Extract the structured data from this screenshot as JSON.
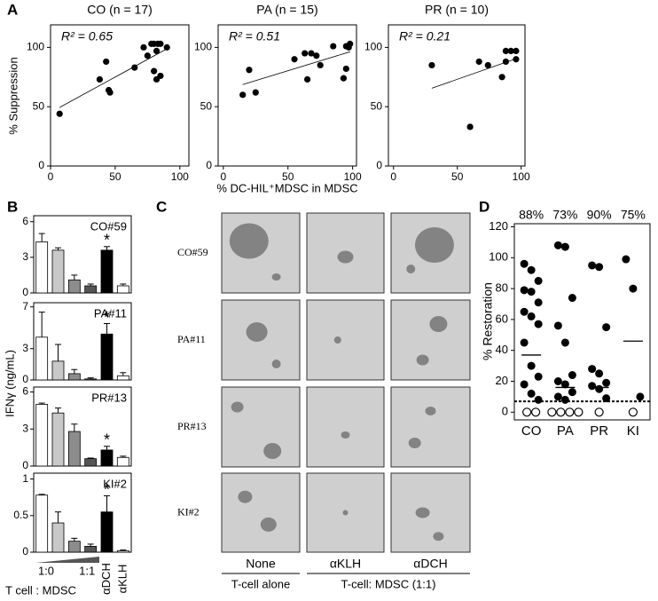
{
  "figure_labels": [
    "A",
    "B",
    "C",
    "D"
  ],
  "panel_a": {
    "ylabel": "% Suppression",
    "xlabel": "% DC-HIL⁺MDSC in MDSC"
  },
  "panel_b": {
    "ylabel": "IFNγ (ng/mL)",
    "xlabel": "T cell : MDSC"
  },
  "panel_c": {
    "rows": [
      "CO#59",
      "PA#11",
      "PR#13",
      "KI#2"
    ],
    "columns": [
      "None",
      "αKLH",
      "αDCH"
    ],
    "groups": [
      "T-cell alone",
      "T-cell: MDSC (1:1)"
    ]
  },
  "chart_data": [
    {
      "type": "scatter",
      "title": "CO (n = 17)",
      "annotation": "R² = 0.65",
      "color": "#000000",
      "trend_line": true,
      "x": [
        7,
        38,
        43,
        45,
        46,
        65,
        72,
        75,
        78,
        80,
        82,
        83,
        85,
        80,
        82,
        85,
        90
      ],
      "y": [
        44,
        73,
        88,
        64,
        62,
        83,
        100,
        93,
        103,
        103,
        97,
        103,
        103,
        80,
        73,
        76,
        100
      ],
      "xlim": [
        0,
        107
      ],
      "ylim": [
        0,
        119
      ],
      "xticks": [
        0,
        50,
        100
      ],
      "yticks": [
        0,
        50,
        100
      ]
    },
    {
      "type": "scatter",
      "title": "PA (n = 15)",
      "annotation": "R² = 0.51",
      "color": "#000000",
      "trend_line": true,
      "x": [
        15,
        20,
        25,
        55,
        63,
        65,
        68,
        72,
        75,
        85,
        95,
        95,
        97,
        98,
        93
      ],
      "y": [
        60,
        81,
        62,
        90,
        95,
        73,
        95,
        93,
        85,
        101,
        101,
        82,
        100,
        103,
        74
      ],
      "xlim": [
        -4,
        103
      ],
      "ylim": [
        0,
        119
      ],
      "xticks": [
        0,
        50,
        100
      ],
      "yticks": [
        0,
        50,
        100
      ]
    },
    {
      "type": "scatter",
      "title": "PR (n = 10)",
      "annotation": "R² = 0.21",
      "color": "#000000",
      "trend_line": true,
      "x": [
        30,
        60,
        67,
        74,
        85,
        88,
        88,
        92,
        96,
        96
      ],
      "y": [
        85,
        33,
        88,
        85,
        75,
        97,
        88,
        97,
        97,
        90
      ],
      "xlim": [
        -4,
        103
      ],
      "ylim": [
        0,
        119
      ],
      "xticks": [
        0,
        50,
        100
      ],
      "yticks": [
        0,
        50,
        100
      ]
    },
    {
      "type": "bar",
      "title": "CO#59",
      "colors": [
        "#ffffff",
        "#c8c8c8",
        "#8c8c8c",
        "#555555",
        "#000000",
        "#ffffff"
      ],
      "values": [
        4.3,
        3.6,
        1.1,
        0.6,
        3.6,
        0.6
      ],
      "errors": [
        0.7,
        0.2,
        0.4,
        0.15,
        0.3,
        0.15
      ],
      "ylim": [
        0,
        6.5
      ],
      "yticks": [
        0,
        3,
        6
      ],
      "annotations": [
        {
          "text": "*",
          "x": 4
        }
      ]
    },
    {
      "type": "bar",
      "title": "PA#11",
      "colors": [
        "#ffffff",
        "#c8c8c8",
        "#8c8c8c",
        "#555555",
        "#000000",
        "#ffffff"
      ],
      "values": [
        4.1,
        1.8,
        0.6,
        0.1,
        4.4,
        0.4
      ],
      "errors": [
        2.4,
        1.6,
        0.4,
        0.1,
        1.0,
        0.3
      ],
      "ylim": [
        0,
        7.4
      ],
      "yticks": [
        0,
        3,
        7
      ],
      "annotations": [
        {
          "text": "*",
          "x": 4
        }
      ]
    },
    {
      "type": "bar",
      "title": "PR#13",
      "colors": [
        "#ffffff",
        "#c8c8c8",
        "#8c8c8c",
        "#555555",
        "#000000",
        "#ffffff"
      ],
      "values": [
        5.0,
        4.3,
        2.8,
        0.6,
        1.3,
        0.7
      ],
      "errors": [
        0.1,
        0.4,
        0.6,
        0.05,
        0.3,
        0.1
      ],
      "ylim": [
        0,
        6.4
      ],
      "yticks": [
        0,
        3,
        6
      ],
      "annotations": [
        {
          "text": "*",
          "x": 4
        }
      ]
    },
    {
      "type": "bar",
      "title": "KI#2",
      "colors": [
        "#ffffff",
        "#c8c8c8",
        "#8c8c8c",
        "#555555",
        "#000000",
        "#ffffff"
      ],
      "categories": [
        "1:0",
        null,
        null,
        "1:1",
        "αDCH",
        "αKLH"
      ],
      "values": [
        0.78,
        0.4,
        0.15,
        0.08,
        0.55,
        0.02
      ],
      "errors": [
        0.01,
        0.15,
        0.04,
        0.03,
        0.22,
        0.01
      ],
      "ylim": [
        0,
        1.08
      ],
      "yticks": [
        0,
        0.5,
        1
      ],
      "annotations": [
        {
          "text": "*",
          "x": 4
        }
      ]
    },
    {
      "type": "dot",
      "ylabel": "% Restoration",
      "categories": [
        "CO",
        "PA",
        "PR",
        "KI"
      ],
      "top_labels": [
        {
          "value": 88,
          "label": "88%"
        },
        {
          "value": 73,
          "label": "73%"
        },
        {
          "value": 90,
          "label": "90%"
        },
        {
          "value": 75,
          "label": "75%"
        }
      ],
      "filled": [
        [
          96,
          92,
          85,
          79,
          78,
          71,
          65,
          62,
          57,
          45,
          30,
          23,
          18,
          12,
          8
        ],
        [
          108,
          107,
          74,
          56,
          45,
          24,
          20,
          18,
          13,
          10,
          8
        ],
        [
          95,
          94,
          55,
          28,
          25,
          19,
          17,
          15,
          9
        ],
        [
          99,
          80,
          10
        ]
      ],
      "open": [
        [
          0,
          0
        ],
        [
          0,
          0,
          0,
          0
        ],
        [
          0
        ],
        [
          0
        ]
      ],
      "medians": [
        37,
        16,
        16,
        46
      ],
      "threshold": 7,
      "ylim": [
        -5,
        122
      ],
      "yticks": [
        0,
        20,
        40,
        60,
        80,
        100,
        120
      ]
    }
  ]
}
